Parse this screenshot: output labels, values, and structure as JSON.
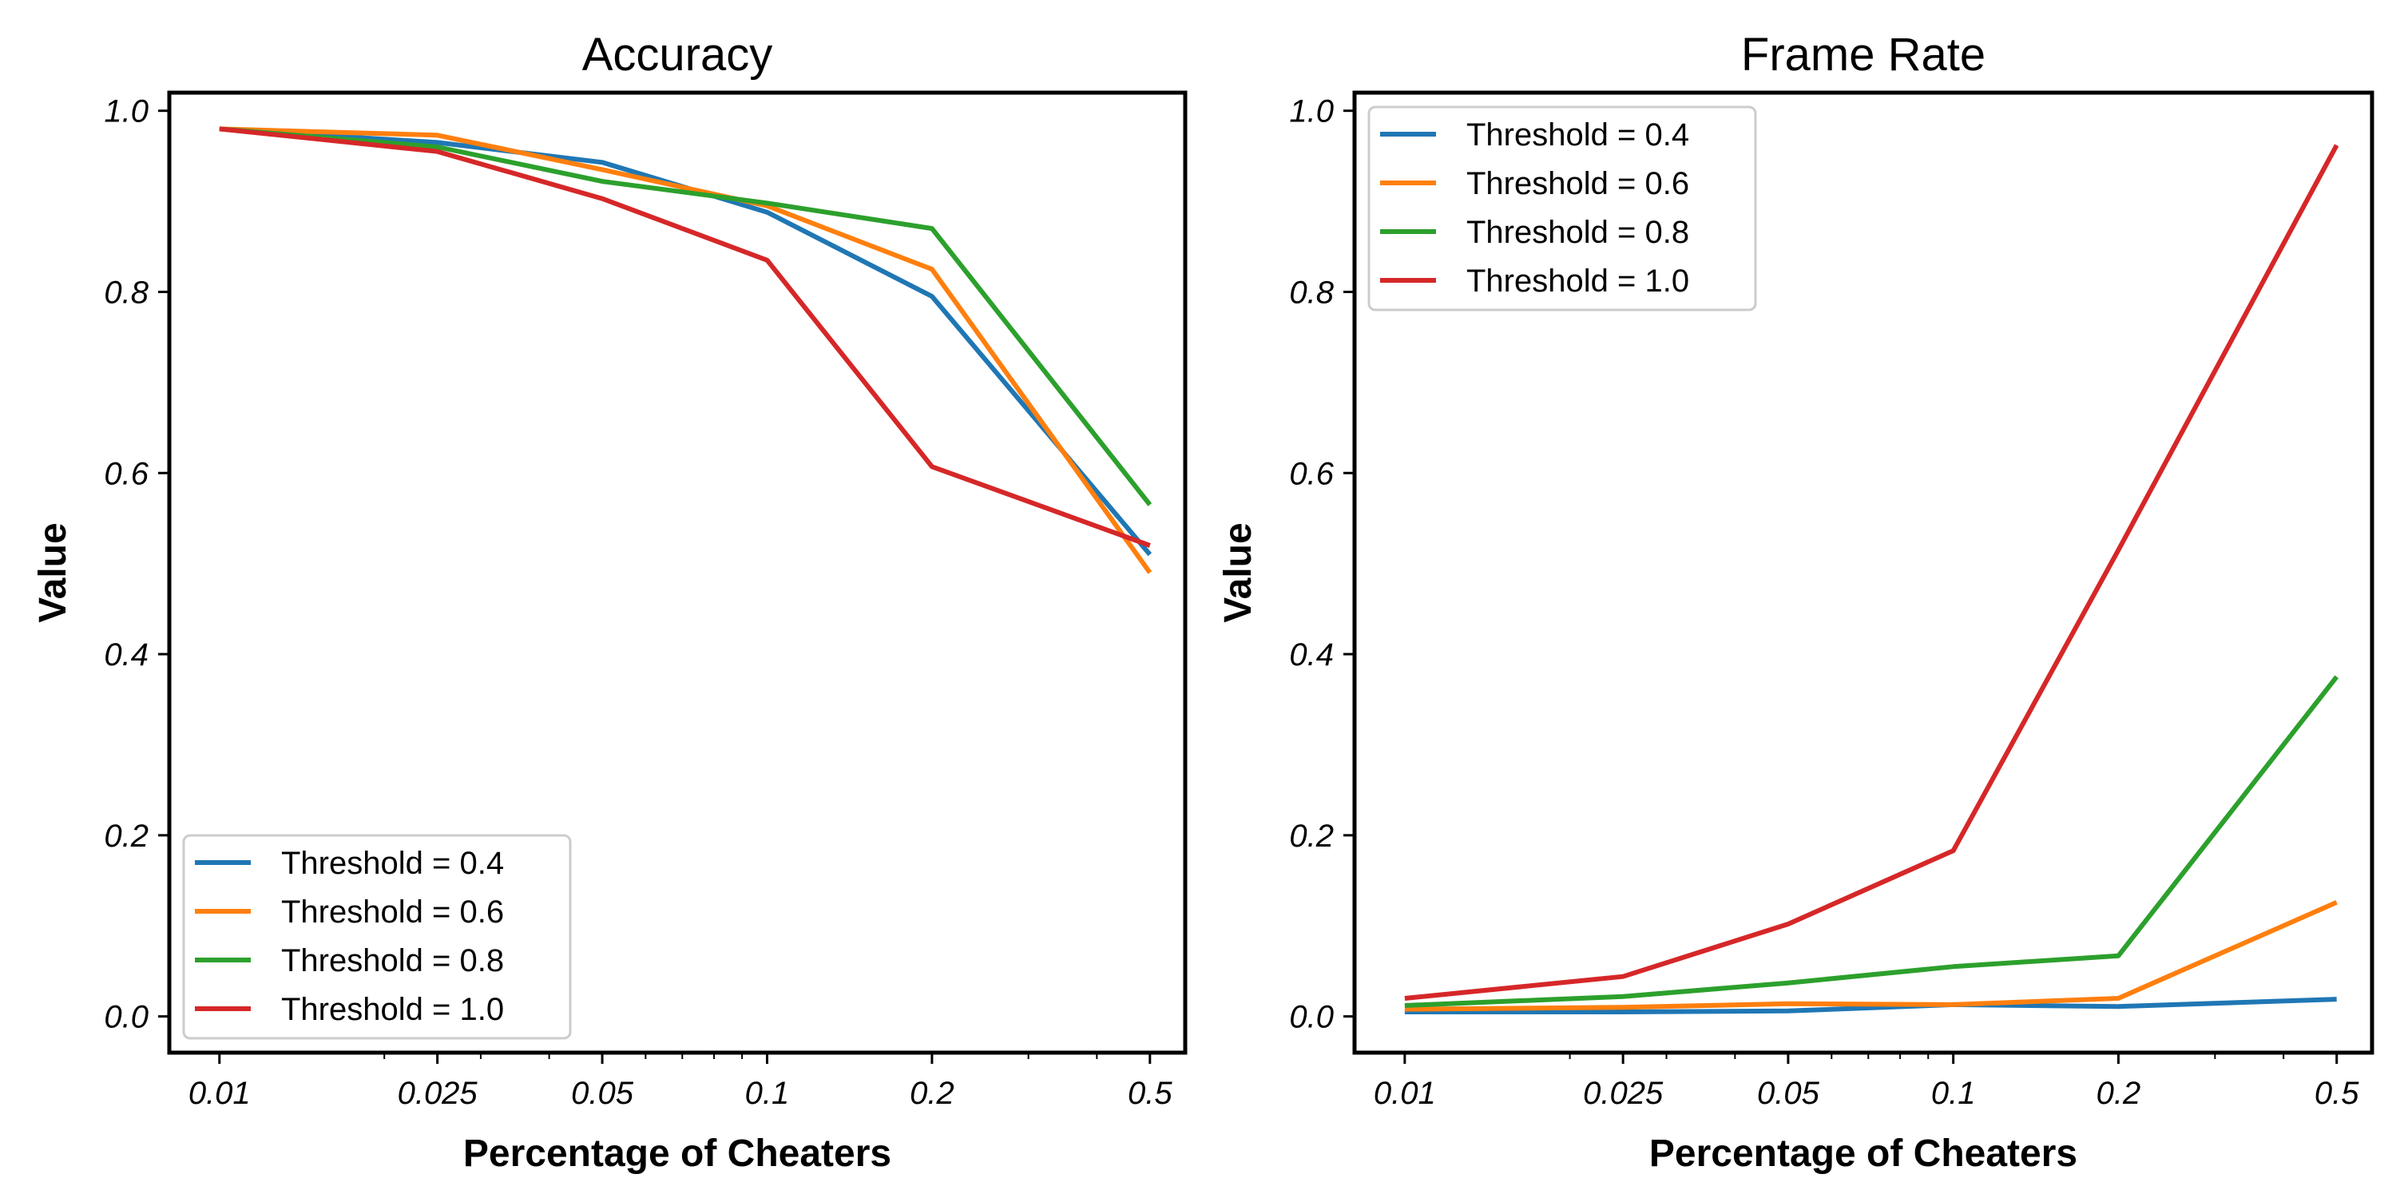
{
  "chart_data": [
    {
      "type": "line",
      "title": "Accuracy",
      "xlabel": "Percentage of Cheaters",
      "ylabel": "Value",
      "xscale": "log",
      "x": [
        0.01,
        0.025,
        0.05,
        0.1,
        0.2,
        0.5
      ],
      "xtick_labels": [
        "0.01",
        "0.025",
        "0.05",
        "0.1",
        "0.2",
        "0.5"
      ],
      "yticks": [
        0.0,
        0.2,
        0.4,
        0.6,
        0.8,
        1.0
      ],
      "ytick_labels": [
        "0.0",
        "0.2",
        "0.4",
        "0.6",
        "0.8",
        "1.0"
      ],
      "ylim": [
        0.0,
        1.0
      ],
      "grid": false,
      "legend_position": "lower-left",
      "series": [
        {
          "name": "Threshold = 0.4",
          "color": "#1f77b4",
          "values": [
            0.98,
            0.965,
            0.943,
            0.888,
            0.795,
            0.51
          ]
        },
        {
          "name": "Threshold = 0.6",
          "color": "#ff7f0e",
          "values": [
            0.98,
            0.973,
            0.935,
            0.895,
            0.825,
            0.49
          ]
        },
        {
          "name": "Threshold = 0.8",
          "color": "#2ca02c",
          "values": [
            0.98,
            0.96,
            0.922,
            0.898,
            0.87,
            0.565
          ]
        },
        {
          "name": "Threshold = 1.0",
          "color": "#d62728",
          "values": [
            0.98,
            0.955,
            0.903,
            0.835,
            0.607,
            0.52
          ]
        }
      ]
    },
    {
      "type": "line",
      "title": "Frame Rate",
      "xlabel": "Percentage of Cheaters",
      "ylabel": "Value",
      "xscale": "log",
      "x": [
        0.01,
        0.025,
        0.05,
        0.1,
        0.2,
        0.5
      ],
      "xtick_labels": [
        "0.01",
        "0.025",
        "0.05",
        "0.1",
        "0.2",
        "0.5"
      ],
      "yticks": [
        0.0,
        0.2,
        0.4,
        0.6,
        0.8,
        1.0
      ],
      "ytick_labels": [
        "0.0",
        "0.2",
        "0.4",
        "0.6",
        "0.8",
        "1.0"
      ],
      "ylim": [
        0.0,
        1.0
      ],
      "grid": false,
      "legend_position": "upper-left",
      "series": [
        {
          "name": "Threshold = 0.4",
          "color": "#1f77b4",
          "values": [
            0.005,
            0.005,
            0.006,
            0.013,
            0.011,
            0.019
          ]
        },
        {
          "name": "Threshold = 0.6",
          "color": "#ff7f0e",
          "values": [
            0.008,
            0.01,
            0.014,
            0.013,
            0.02,
            0.126
          ]
        },
        {
          "name": "Threshold = 0.8",
          "color": "#2ca02c",
          "values": [
            0.012,
            0.022,
            0.037,
            0.055,
            0.067,
            0.375
          ]
        },
        {
          "name": "Threshold = 1.0",
          "color": "#d62728",
          "values": [
            0.02,
            0.044,
            0.102,
            0.183,
            0.515,
            0.962
          ]
        }
      ]
    }
  ]
}
